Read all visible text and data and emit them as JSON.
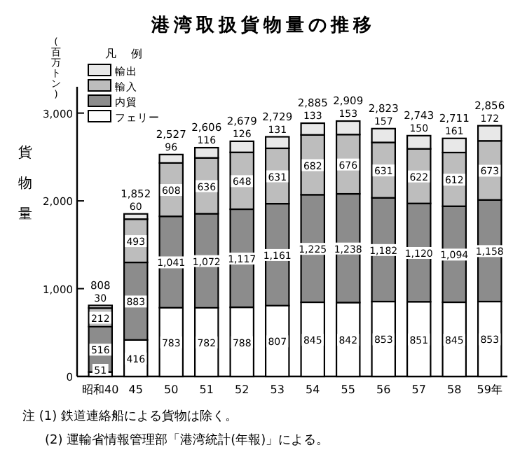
{
  "chart_data": {
    "type": "bar",
    "stacked": true,
    "title": "港湾取扱貨物量の推移",
    "ylabel": "貨物量",
    "legend_title": "凡 例",
    "legend": "top left",
    "categories": [
      "昭和40",
      "45",
      "50",
      "51",
      "52",
      "53",
      "54",
      "55",
      "56",
      "57",
      "58",
      "59年"
    ],
    "series": [
      {
        "name": "フェリー",
        "color": "#ffffff",
        "values": [
          51,
          416,
          783,
          782,
          788,
          807,
          845,
          842,
          853,
          851,
          845,
          853
        ],
        "value_labels": [
          "51",
          "416",
          "783",
          "782",
          "788",
          "807",
          "845",
          "842",
          "853",
          "851",
          "845",
          "853"
        ]
      },
      {
        "name": "内貿",
        "color": "#8c8c8c",
        "values": [
          516,
          883,
          1041,
          1072,
          1117,
          1161,
          1225,
          1238,
          1182,
          1120,
          1094,
          1158
        ],
        "value_labels": [
          "516",
          "883",
          "1,041",
          "1,072",
          "1,117",
          "1,161",
          "1,225",
          "1,238",
          "1,182",
          "1,120",
          "1,094",
          "1,158"
        ]
      },
      {
        "name": "輸入",
        "color": "#bdbdbd",
        "values": [
          212,
          493,
          608,
          636,
          648,
          631,
          682,
          676,
          631,
          622,
          612,
          673
        ],
        "value_labels": [
          "212",
          "493",
          "608",
          "636",
          "648",
          "631",
          "682",
          "676",
          "631",
          "622",
          "612",
          "673"
        ]
      },
      {
        "name": "輸出",
        "color": "#e8e8e8",
        "values": [
          30,
          60,
          96,
          116,
          126,
          131,
          133,
          153,
          157,
          150,
          161,
          172
        ],
        "value_labels": [
          "30",
          "60",
          "96",
          "116",
          "126",
          "131",
          "133",
          "153",
          "157",
          "150",
          "161",
          "172"
        ]
      }
    ],
    "totals": [
      "808",
      "1,852",
      "2,527",
      "2,606",
      "2,679",
      "2,729",
      "2,885",
      "2,909",
      "2,823",
      "2,743",
      "2,711",
      "2,856"
    ],
    "ylim": [
      0,
      3300
    ],
    "yticks": [
      0,
      {
        "value": 1000,
        "label": "1,000"
      },
      {
        "value": 2000,
        "label": "2,000"
      },
      {
        "value": 3000,
        "label": "3,000"
      }
    ],
    "annotations": [
      "(百万トン)",
      "注 (1) 鉄道連絡船による貨物は除く。",
      "(2) 運輸省情報管理部「港湾統計(年報)」による。"
    ]
  }
}
